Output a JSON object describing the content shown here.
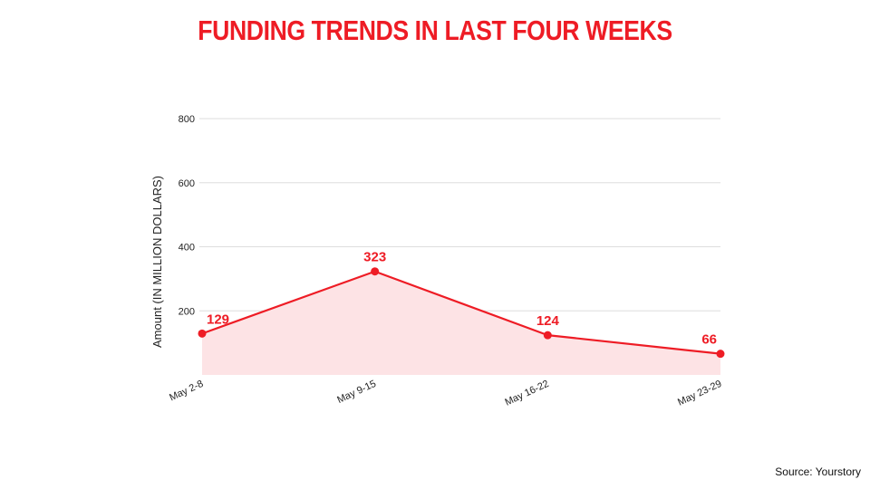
{
  "title": "FUNDING TRENDS IN LAST FOUR WEEKS",
  "source": "Source: Yourstory",
  "colors": {
    "accent": "#ee1c25",
    "area_fill": "#fde3e5",
    "grid": "#dddddd"
  },
  "chart_data": {
    "type": "area",
    "categories": [
      "May 2-8",
      "May 9-15",
      "May 16-22",
      "May 23-29"
    ],
    "series": [
      {
        "values": [
          129,
          323,
          124,
          66
        ]
      }
    ],
    "data_labels": [
      "129",
      "323",
      "124",
      "66"
    ],
    "ylabel": "Amount (IN MILLION DOLLARS)",
    "xlabel": "",
    "ylim": [
      0,
      800
    ],
    "yticks": [
      200,
      400,
      600,
      800
    ],
    "ytick_labels": [
      "200",
      "400",
      "600",
      "800"
    ],
    "grid": true,
    "legend": "none"
  }
}
